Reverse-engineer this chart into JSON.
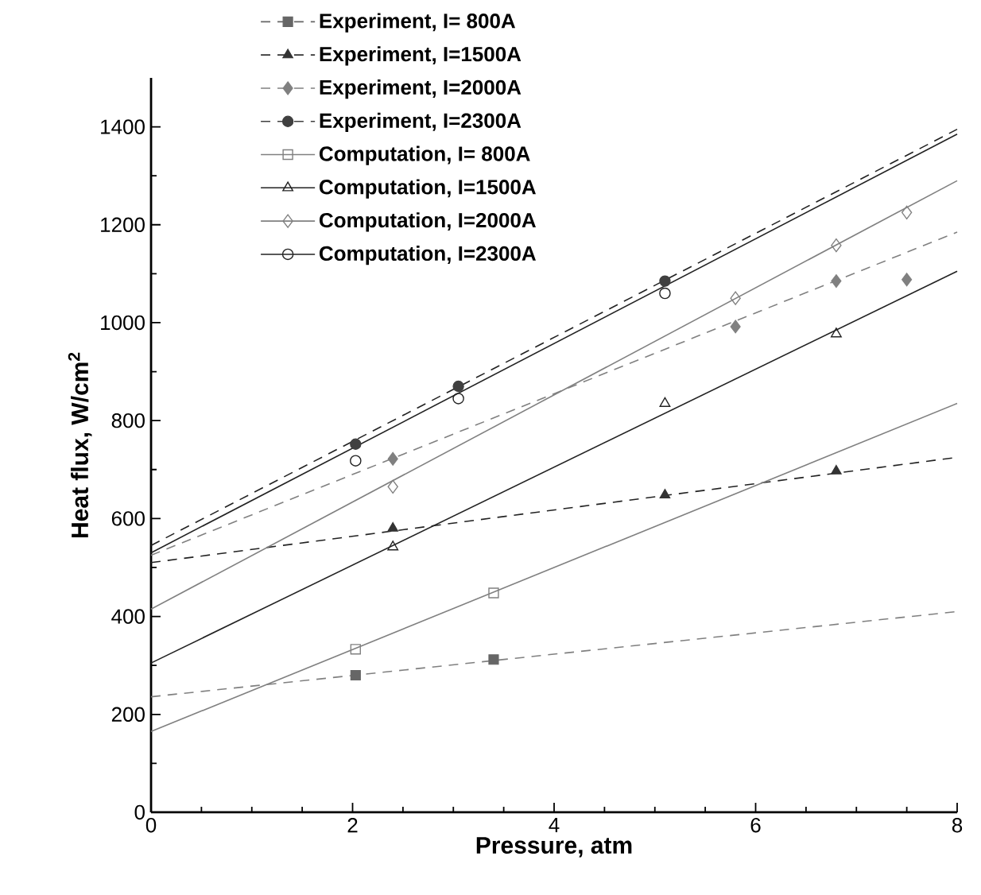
{
  "chart_data": {
    "type": "scatter",
    "xlabel": "Pressure, atm",
    "ylabel": "Heat flux, W/cm$^{2}$",
    "xlim": [
      0,
      8
    ],
    "ylim": [
      0,
      1500
    ],
    "xticks": [
      0,
      2,
      4,
      6,
      8
    ],
    "yticks": [
      0,
      200,
      400,
      600,
      800,
      1000,
      1200,
      1400
    ],
    "grid": false,
    "legend": "top left",
    "series": [
      {
        "name": "Experiment, I=  800A",
        "marker": "square",
        "line_style": "dashed",
        "color": "#666666",
        "x": [
          2.03,
          3.4
        ],
        "values": [
          280,
          312
        ]
      },
      {
        "name": "Experiment, I=1500A",
        "marker": "triangle",
        "line_style": "dashed",
        "color": "#333333",
        "x": [
          2.4,
          5.1,
          6.8
        ],
        "values": [
          580,
          648,
          697
        ]
      },
      {
        "name": "Experiment, I=2000A",
        "marker": "diamond",
        "line_style": "dashed",
        "color": "#808080",
        "x": [
          2.4,
          5.8,
          6.8,
          7.5
        ],
        "values": [
          722,
          992,
          1085,
          1088
        ]
      },
      {
        "name": "Experiment, I=2300A",
        "marker": "circle",
        "line_style": "dashed",
        "color": "#404040",
        "x": [
          2.03,
          3.05,
          5.1
        ],
        "values": [
          752,
          870,
          1085
        ]
      },
      {
        "name": "Computation, I=  800A",
        "marker": "square",
        "line_style": "solid",
        "color": "#808080",
        "x": [
          2.03,
          3.4
        ],
        "values": [
          333,
          448
        ]
      },
      {
        "name": "Computation, I=1500A",
        "marker": "triangle",
        "line_style": "solid",
        "color": "#222222",
        "x": [
          2.4,
          5.1,
          6.8
        ],
        "values": [
          542,
          835,
          977
        ]
      },
      {
        "name": "Computation, I=2000A",
        "marker": "diamond",
        "line_style": "solid",
        "color": "#808080",
        "x": [
          2.4,
          5.8,
          6.8,
          7.5
        ],
        "values": [
          665,
          1050,
          1158,
          1225
        ]
      },
      {
        "name": "Computation, I=2300A",
        "marker": "circle",
        "line_style": "solid",
        "color": "#222222",
        "x": [
          2.03,
          3.05,
          5.1
        ],
        "values": [
          718,
          845,
          1060
        ]
      },
      {
        "type": "line",
        "line_style": "dashed",
        "color": "#808080",
        "x": [
          0,
          8
        ],
        "values": [
          236,
          410
        ]
      },
      {
        "type": "line",
        "line_style": "dashed",
        "color": "#222222",
        "x": [
          0,
          8
        ],
        "values": [
          510,
          725
        ]
      },
      {
        "type": "line",
        "line_style": "dashed",
        "color": "#808080",
        "x": [
          0,
          8
        ],
        "values": [
          525,
          1185
        ]
      },
      {
        "type": "line",
        "line_style": "dashed",
        "color": "#222222",
        "x": [
          0,
          8
        ],
        "values": [
          545,
          1395
        ]
      },
      {
        "type": "line",
        "line_style": "solid",
        "color": "#808080",
        "x": [
          0,
          8
        ],
        "values": [
          165,
          835
        ]
      },
      {
        "type": "line",
        "line_style": "solid",
        "color": "#222222",
        "x": [
          0,
          8
        ],
        "values": [
          305,
          1105
        ]
      },
      {
        "type": "line",
        "line_style": "solid",
        "color": "#808080",
        "x": [
          0,
          8
        ],
        "values": [
          415,
          1290
        ]
      },
      {
        "type": "line",
        "line_style": "solid",
        "color": "#222222",
        "x": [
          0,
          8
        ],
        "values": [
          530,
          1385
        ]
      }
    ]
  }
}
